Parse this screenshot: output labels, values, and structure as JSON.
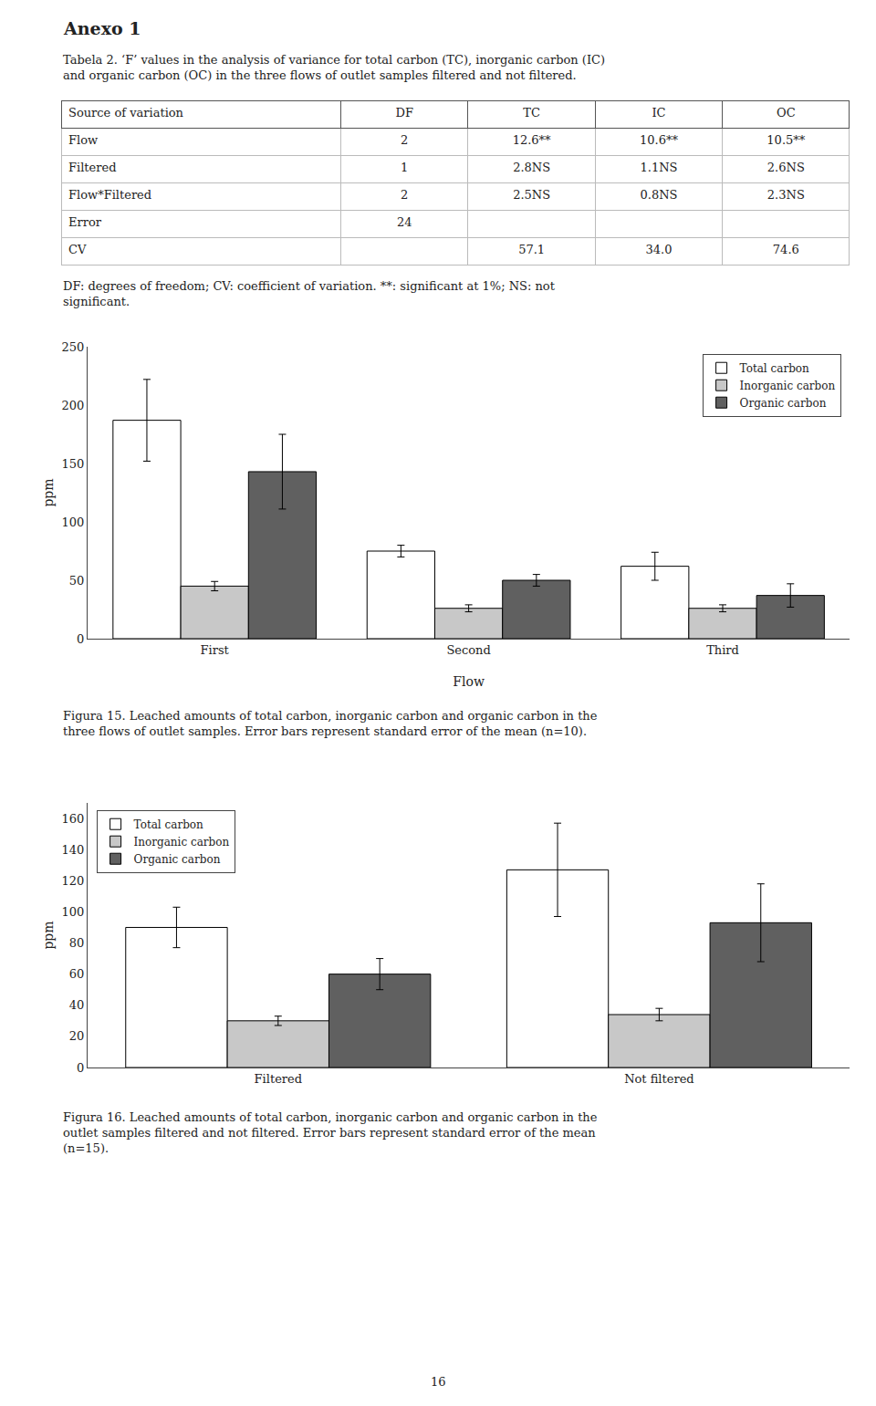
{
  "chart_data": [
    {
      "type": "table",
      "title": "Anexo 1",
      "subtitle": [
        "Tabela 2. ‘F’ values in the analysis of variance for total carbon (TC), inorganic carbon (IC)",
        "and organic carbon (OC) in the three flows of outlet samples filtered and not filtered."
      ],
      "columns": [
        "Source of variation",
        "DF",
        "TC",
        "IC",
        "OC"
      ],
      "rows": [
        [
          "Flow",
          "2",
          "12.6**",
          "10.6**",
          "10.5**"
        ],
        [
          "Filtered",
          "1",
          "2.8NS",
          "1.1NS",
          "2.6NS"
        ],
        [
          "Flow*Filtered",
          "2",
          "2.5NS",
          "0.8NS",
          "2.3NS"
        ],
        [
          "Error",
          "24",
          null,
          null,
          null
        ],
        [
          "CV",
          null,
          "57.1",
          "34.0",
          "74.6"
        ]
      ],
      "caption": [
        "DF: degrees of freedom; CV: coefficient of variation. **: significant at 1%; NS: not",
        "significant."
      ]
    },
    {
      "type": "bar",
      "xlabel": "Flow",
      "ylabel": "ppm",
      "categories": [
        "First",
        "Second",
        "Third"
      ],
      "series": [
        {
          "name": "Total carbon",
          "color": "#ffffff",
          "values": [
            187,
            75,
            62
          ],
          "errors": [
            35,
            5,
            12
          ]
        },
        {
          "name": "Inorganic carbon",
          "color": "#c8c8c8",
          "values": [
            45,
            26,
            26
          ],
          "errors": [
            4,
            3,
            3
          ]
        },
        {
          "name": "Organic carbon",
          "color": "#606060",
          "values": [
            143,
            50,
            37
          ],
          "errors": [
            32,
            5,
            10
          ]
        }
      ],
      "ylim": [
        0,
        250
      ],
      "yticks": [
        0,
        50,
        100,
        150,
        200,
        250
      ],
      "grid": false,
      "legend": "upper right",
      "caption": [
        "Figura 15. Leached amounts of total carbon, inorganic carbon and organic carbon in the",
        "three flows of outlet samples. Error bars represent standard error of the mean (n=10)."
      ]
    },
    {
      "type": "bar",
      "ylabel": "ppm",
      "categories": [
        "Filtered",
        "Not filtered"
      ],
      "series": [
        {
          "name": "Total carbon",
          "color": "#ffffff",
          "values": [
            90,
            127
          ],
          "errors": [
            13,
            30
          ]
        },
        {
          "name": "Inorganic carbon",
          "color": "#c8c8c8",
          "values": [
            30,
            34
          ],
          "errors": [
            3,
            4
          ]
        },
        {
          "name": "Organic carbon",
          "color": "#606060",
          "values": [
            60,
            93
          ],
          "errors": [
            10,
            25
          ]
        }
      ],
      "ylim": [
        0,
        170
      ],
      "yticks": [
        0,
        20,
        40,
        60,
        80,
        100,
        120,
        140,
        160
      ],
      "grid": false,
      "legend": "upper left",
      "caption": [
        "Figura 16. Leached amounts of total carbon, inorganic carbon and organic carbon in the",
        "outlet samples filtered and not filtered. Error bars represent standard error of the mean",
        "(n=15)."
      ],
      "annotations": [
        "16"
      ]
    }
  ]
}
